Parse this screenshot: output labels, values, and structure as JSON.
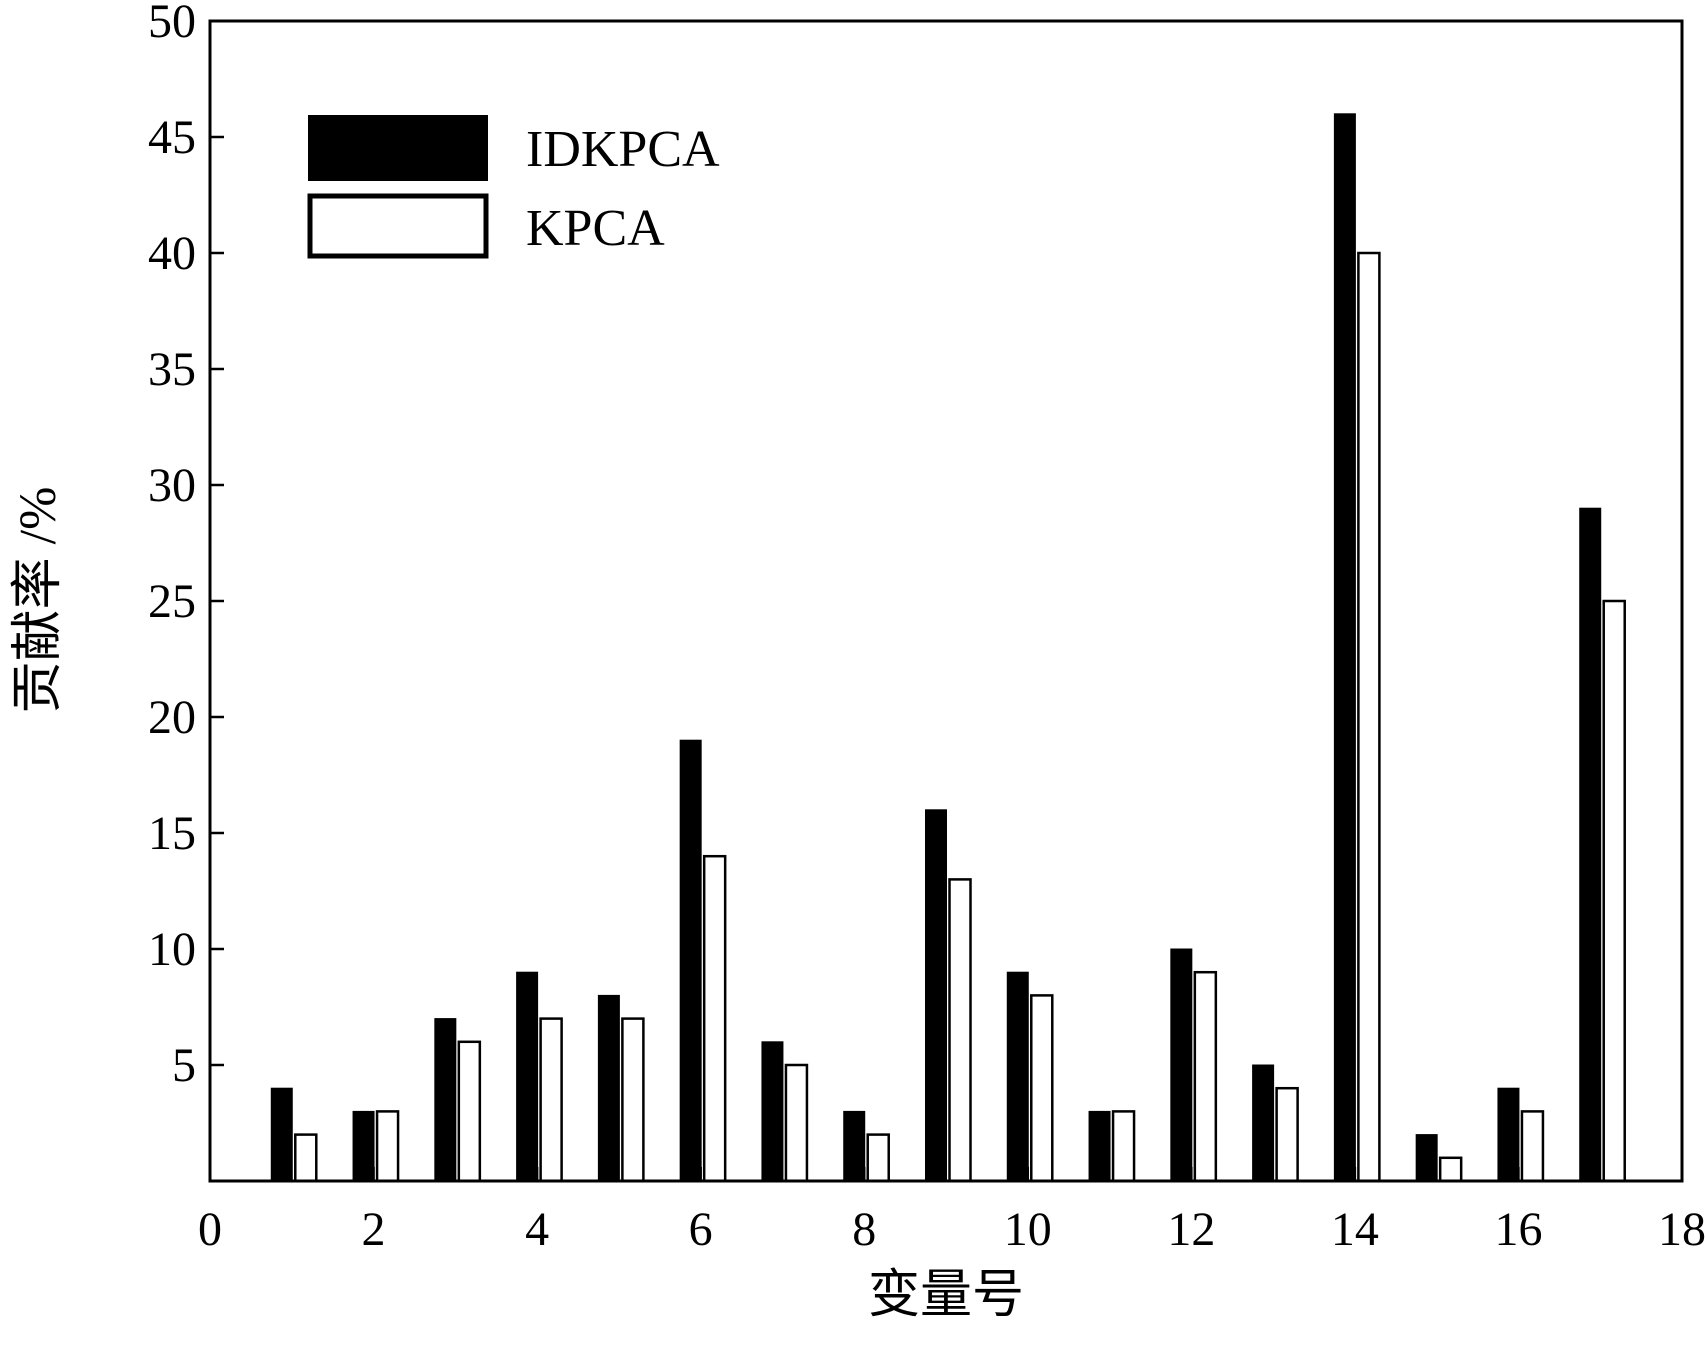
{
  "chart_data": {
    "type": "bar",
    "title": "",
    "xlabel": "变量号",
    "ylabel": "贡献率 /%",
    "xlim": [
      0,
      18
    ],
    "ylim": [
      0,
      50
    ],
    "xticks": [
      "0",
      "2",
      "4",
      "6",
      "8",
      "10",
      "12",
      "14",
      "16",
      "18"
    ],
    "yticks": [
      "5",
      "10",
      "15",
      "20",
      "25",
      "30",
      "35",
      "40",
      "45",
      "50"
    ],
    "legend_position": "top-left",
    "categories": [
      1,
      2,
      3,
      4,
      5,
      6,
      7,
      8,
      9,
      10,
      11,
      12,
      13,
      14,
      15,
      16,
      17
    ],
    "series": [
      {
        "name": "IDKPCA",
        "fill": "#000000",
        "values": [
          4,
          3,
          7,
          9,
          8,
          19,
          6,
          3,
          16,
          9,
          3,
          10,
          5,
          46,
          2,
          4,
          29
        ]
      },
      {
        "name": "KPCA",
        "fill": "#ffffff",
        "values": [
          2,
          3,
          6,
          7,
          7,
          14,
          5,
          2,
          13,
          8,
          3,
          9,
          4,
          40,
          1,
          3,
          25
        ]
      }
    ]
  }
}
